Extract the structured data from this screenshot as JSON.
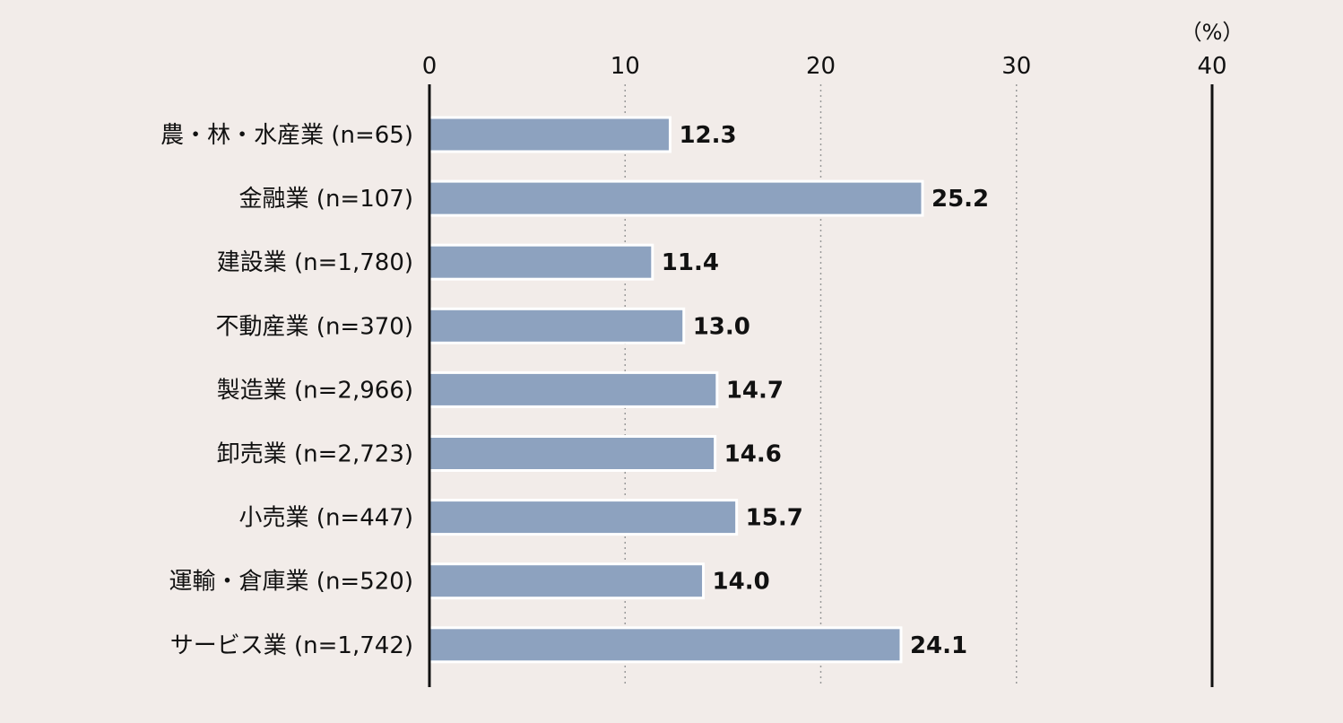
{
  "chart_data": {
    "type": "bar",
    "orientation": "horizontal",
    "categories": [
      "農・林・水産業 (n=65)",
      "金融業 (n=107)",
      "建設業 (n=1,780)",
      "不動産業 (n=370)",
      "製造業 (n=2,966)",
      "卸売業 (n=2,723)",
      "小売業 (n=447)",
      "運輸・倉庫業 (n=520)",
      "サービス業 (n=1,742)"
    ],
    "values": [
      12.3,
      25.2,
      11.4,
      13.0,
      14.7,
      14.6,
      15.7,
      14.0,
      24.1
    ],
    "value_labels": [
      "12.3",
      "25.2",
      "11.4",
      "13.0",
      "14.7",
      "14.6",
      "15.7",
      "14.0",
      "24.1"
    ],
    "xlim": [
      0,
      40
    ],
    "ticks": [
      0,
      10,
      20,
      30,
      40
    ],
    "tick_labels": [
      "0",
      "10",
      "20",
      "30",
      "40"
    ],
    "unit": "（%）",
    "grid": true,
    "colors": {
      "bar": "#8da2bf",
      "background": "#f2ece9"
    }
  }
}
